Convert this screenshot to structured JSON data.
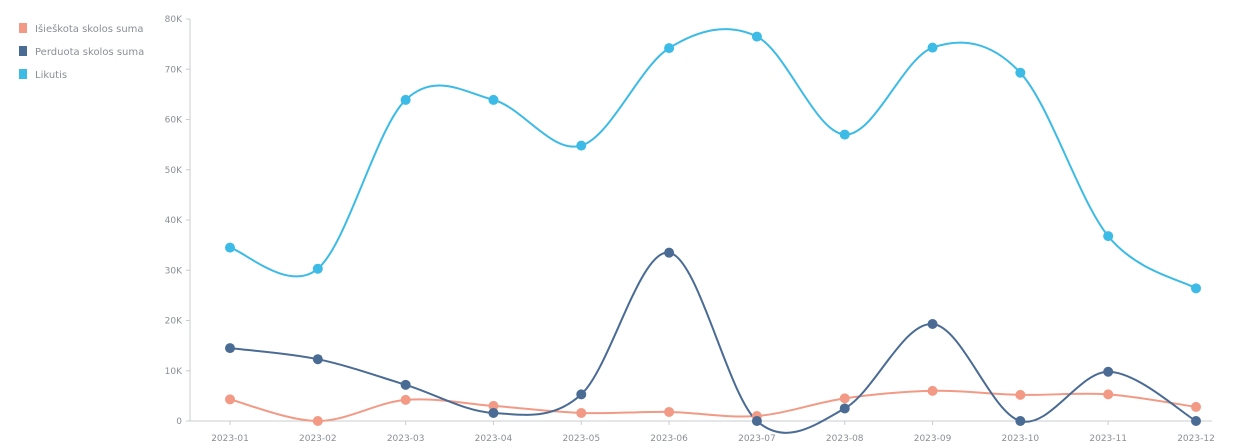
{
  "chart_data": {
    "type": "line",
    "categories": [
      "2023-01",
      "2023-02",
      "2023-03",
      "2023-04",
      "2023-05",
      "2023-06",
      "2023-07",
      "2023-08",
      "2023-09",
      "2023-10",
      "2023-11",
      "2023-12"
    ],
    "y_ticks": [
      "0",
      "10K",
      "20K",
      "30K",
      "40K",
      "50K",
      "60K",
      "70K",
      "80K"
    ],
    "ylim": [
      0,
      80000
    ],
    "grid": false,
    "legend_position": "top-left",
    "series": [
      {
        "name": "Išieškota skolos suma",
        "color": "#f29a85",
        "values": [
          4300,
          0,
          4200,
          3000,
          1600,
          1800,
          1000,
          4500,
          6000,
          5200,
          5300,
          2800
        ]
      },
      {
        "name": "Perduota skolos suma",
        "color": "#4a6b94",
        "values": [
          14500,
          12300,
          7200,
          1600,
          5300,
          33500,
          0,
          2500,
          19300,
          0,
          9800,
          0
        ]
      },
      {
        "name": "Likutis",
        "color": "#3bbbe6",
        "values": [
          34500,
          30300,
          63900,
          63900,
          54800,
          74200,
          76500,
          57000,
          74300,
          69300,
          36800,
          26400
        ]
      }
    ]
  }
}
